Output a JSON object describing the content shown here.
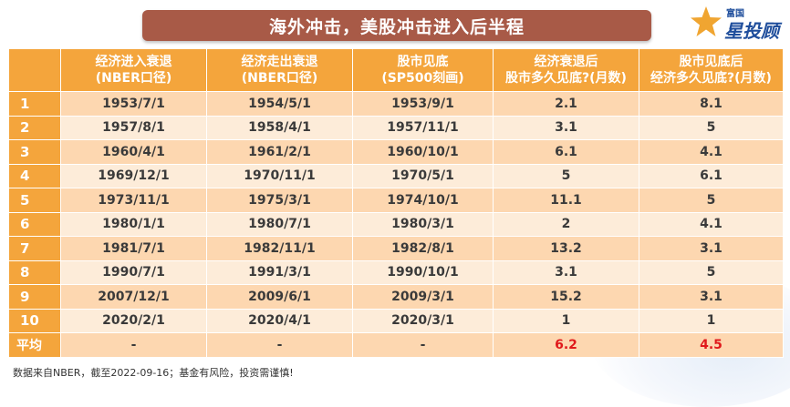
{
  "title": "海外冲击，美股冲击进入后半程",
  "logo": {
    "small_text": "富国",
    "big_text": "星投顾"
  },
  "table": {
    "headers": [
      {
        "line1": "",
        "line2": ""
      },
      {
        "line1": "经济进入衰退",
        "line2": "(NBER口径)"
      },
      {
        "line1": "经济走出衰退",
        "line2": "(NBER口径)"
      },
      {
        "line1": "股市见底",
        "line2": "(SP500刻画)"
      },
      {
        "line1": "经济衰退后",
        "line2": "股市多久见底?(月数)"
      },
      {
        "line1": "股市见底后",
        "line2": "经济多久见底?(月数)"
      }
    ],
    "rows": [
      [
        "1",
        "1953/7/1",
        "1954/5/1",
        "1953/9/1",
        "2.1",
        "8.1"
      ],
      [
        "2",
        "1957/8/1",
        "1958/4/1",
        "1957/11/1",
        "3.1",
        "5"
      ],
      [
        "3",
        "1960/4/1",
        "1961/2/1",
        "1960/10/1",
        "6.1",
        "4.1"
      ],
      [
        "4",
        "1969/12/1",
        "1970/11/1",
        "1970/5/1",
        "5",
        "6.1"
      ],
      [
        "5",
        "1973/11/1",
        "1975/3/1",
        "1974/10/1",
        "11.1",
        "5"
      ],
      [
        "6",
        "1980/1/1",
        "1980/7/1",
        "1980/3/1",
        "2",
        "4.1"
      ],
      [
        "7",
        "1981/7/1",
        "1982/11/1",
        "1982/8/1",
        "13.2",
        "3.1"
      ],
      [
        "8",
        "1990/7/1",
        "1991/3/1",
        "1990/10/1",
        "3.1",
        "5"
      ],
      [
        "9",
        "2007/12/1",
        "2009/6/1",
        "2009/3/1",
        "15.2",
        "3.1"
      ],
      [
        "10",
        "2020/2/1",
        "2020/4/1",
        "2020/3/1",
        "1",
        "1"
      ]
    ],
    "average": [
      "平均",
      "-",
      "-",
      "-",
      "6.2",
      "4.5"
    ],
    "colors": {
      "header": "#f4a53c",
      "row_dark": "#fdd7b0",
      "row_light": "#fdecd9",
      "highlight": "#e0191b",
      "title_bar": "#a85a47"
    }
  },
  "footnote": "数据来自NBER，截至2022-09-16；基金有风险，投资需谨慎!"
}
